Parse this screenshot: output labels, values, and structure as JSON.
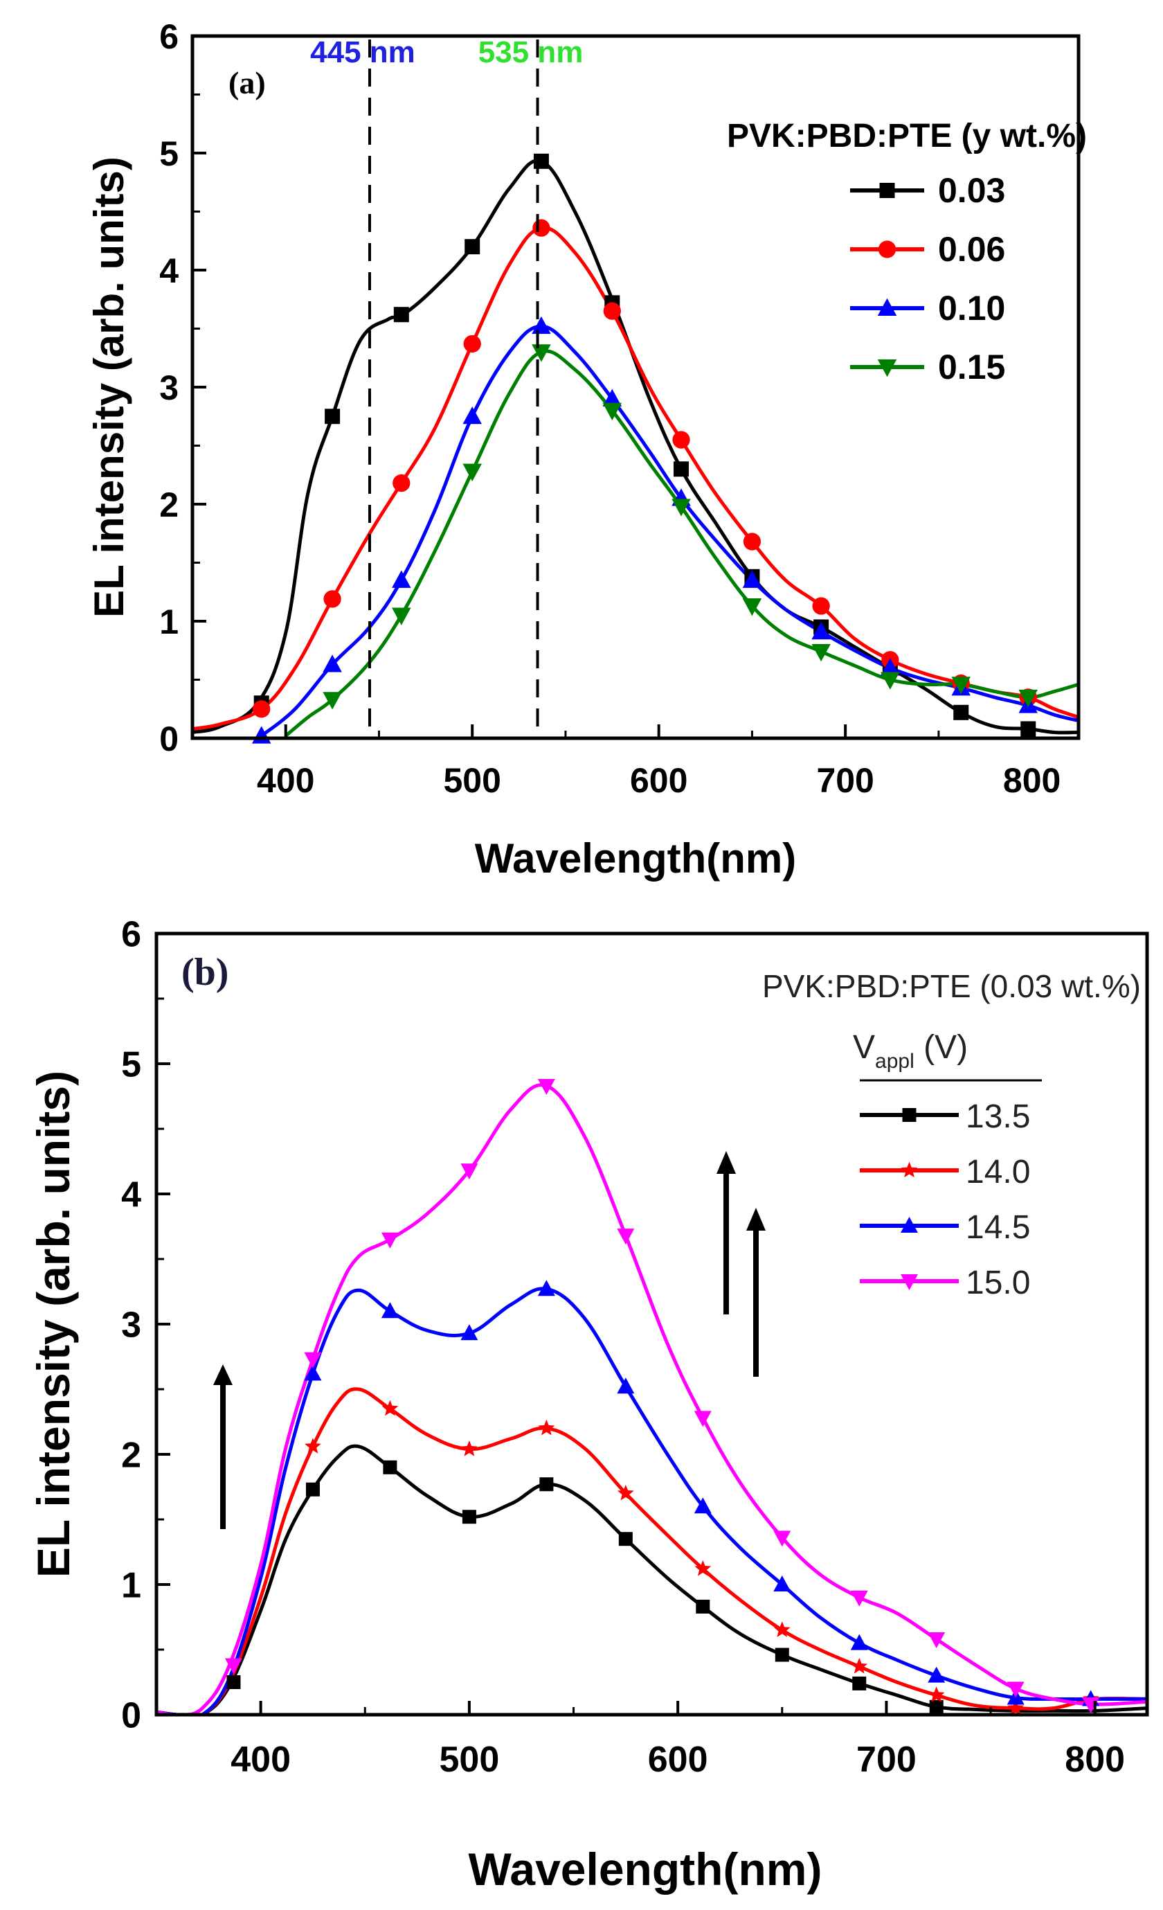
{
  "chart_data": [
    {
      "panel": "(a)",
      "type": "line",
      "xlabel": "Wavelength(nm)",
      "ylabel": "EL intensity (arb. units)",
      "xlim": [
        350,
        825
      ],
      "ylim": [
        0,
        6
      ],
      "x_ticks": [
        400,
        500,
        600,
        700,
        800
      ],
      "y_ticks": [
        0,
        1,
        2,
        3,
        4,
        5,
        6
      ],
      "legend_title": "PVK:PBD:PTE (y wt.%)",
      "legend_position": "top-right",
      "annotations": [
        {
          "text": "445 nm",
          "x": 445,
          "color": "#2020e0"
        },
        {
          "text": "535 nm",
          "x": 535,
          "color": "#30e030"
        }
      ],
      "series": [
        {
          "name": "0.03",
          "color": "#000000",
          "marker": "square",
          "x": [
            350,
            365,
            385,
            400,
            412,
            425,
            440,
            455,
            463,
            480,
            500,
            520,
            537,
            555,
            575,
            595,
            612,
            630,
            650,
            668,
            687,
            705,
            724,
            743,
            762,
            780,
            798,
            812,
            825
          ],
          "y": [
            0.05,
            0.1,
            0.3,
            0.9,
            2.1,
            2.75,
            3.4,
            3.58,
            3.62,
            3.85,
            4.2,
            4.7,
            4.93,
            4.5,
            3.75,
            2.9,
            2.3,
            1.85,
            1.38,
            1.1,
            0.95,
            0.78,
            0.6,
            0.42,
            0.22,
            0.1,
            0.08,
            0.05,
            0.05
          ],
          "markers_x": [
            387,
            425,
            462,
            500,
            537,
            575,
            612,
            650,
            687,
            724,
            762,
            798
          ],
          "markers_y": [
            0.3,
            2.75,
            3.62,
            4.2,
            4.93,
            3.72,
            2.3,
            1.38,
            0.95,
            0.6,
            0.22,
            0.08
          ]
        },
        {
          "name": "0.06",
          "color": "#ff0000",
          "marker": "circle",
          "x": [
            350,
            365,
            387,
            405,
            425,
            445,
            462,
            480,
            500,
            520,
            537,
            555,
            575,
            595,
            612,
            630,
            650,
            668,
            687,
            705,
            724,
            743,
            762,
            780,
            798,
            812,
            825
          ],
          "y": [
            0.08,
            0.12,
            0.25,
            0.6,
            1.19,
            1.75,
            2.18,
            2.65,
            3.37,
            4.05,
            4.36,
            4.15,
            3.65,
            3.0,
            2.55,
            2.1,
            1.68,
            1.35,
            1.13,
            0.85,
            0.67,
            0.55,
            0.47,
            0.4,
            0.35,
            0.25,
            0.18
          ],
          "markers_x": [
            387,
            425,
            462,
            500,
            537,
            575,
            612,
            650,
            687,
            724,
            762,
            798
          ],
          "markers_y": [
            0.25,
            1.19,
            2.18,
            3.37,
            4.36,
            3.65,
            2.55,
            1.68,
            1.13,
            0.67,
            0.47,
            0.35
          ]
        },
        {
          "name": "0.10",
          "color": "#0000ff",
          "marker": "triangle-up",
          "x": [
            387,
            405,
            425,
            445,
            462,
            480,
            500,
            520,
            537,
            555,
            575,
            595,
            612,
            630,
            650,
            668,
            687,
            705,
            724,
            743,
            762,
            780,
            798,
            812,
            825
          ],
          "y": [
            0.02,
            0.25,
            0.63,
            0.95,
            1.35,
            1.95,
            2.75,
            3.3,
            3.52,
            3.3,
            2.9,
            2.45,
            2.05,
            1.7,
            1.35,
            1.1,
            0.91,
            0.75,
            0.6,
            0.5,
            0.43,
            0.35,
            0.28,
            0.2,
            0.15
          ],
          "markers_x": [
            387,
            425,
            462,
            500,
            537,
            575,
            612,
            650,
            687,
            724,
            762,
            798
          ],
          "markers_y": [
            0.02,
            0.63,
            1.35,
            2.75,
            3.52,
            2.9,
            2.05,
            1.35,
            0.91,
            0.6,
            0.43,
            0.28
          ]
        },
        {
          "name": "0.15",
          "color": "#008000",
          "marker": "triangle-down",
          "x": [
            400,
            412,
            425,
            445,
            462,
            480,
            500,
            520,
            537,
            555,
            575,
            595,
            612,
            630,
            650,
            668,
            687,
            705,
            724,
            743,
            762,
            780,
            798,
            812,
            825
          ],
          "y": [
            0.02,
            0.18,
            0.33,
            0.65,
            1.05,
            1.6,
            2.28,
            2.95,
            3.3,
            3.15,
            2.8,
            2.35,
            1.98,
            1.55,
            1.13,
            0.88,
            0.74,
            0.62,
            0.5,
            0.46,
            0.46,
            0.4,
            0.35,
            0.4,
            0.46
          ],
          "markers_x": [
            425,
            462,
            500,
            537,
            575,
            612,
            650,
            687,
            724,
            762,
            798
          ],
          "markers_y": [
            0.33,
            1.05,
            2.28,
            3.3,
            2.8,
            1.98,
            1.13,
            0.74,
            0.5,
            0.46,
            0.35
          ]
        }
      ]
    },
    {
      "panel": "(b)",
      "type": "line",
      "xlabel": "Wavelength(nm)",
      "ylabel": "EL intensity (arb. units)",
      "xlim": [
        350,
        825
      ],
      "ylim": [
        0,
        6
      ],
      "x_ticks": [
        400,
        500,
        600,
        700,
        800
      ],
      "y_ticks": [
        0,
        1,
        2,
        3,
        4,
        5,
        6
      ],
      "legend_title": "PVK:PBD:PTE (0.03 wt.%)",
      "legend_header_main": "V",
      "legend_header_sub": "appl",
      "legend_header_unit": " (V)",
      "legend_position": "top-right",
      "series": [
        {
          "name": "13.5",
          "color": "#000000",
          "marker": "square",
          "x": [
            350,
            360,
            372,
            385,
            400,
            412,
            425,
            437,
            447,
            462,
            480,
            500,
            520,
            537,
            555,
            575,
            595,
            612,
            630,
            650,
            668,
            687,
            705,
            724,
            743,
            762,
            780,
            800,
            825
          ],
          "y": [
            0.02,
            0.0,
            0.0,
            0.22,
            0.8,
            1.35,
            1.73,
            1.98,
            2.06,
            1.9,
            1.68,
            1.52,
            1.62,
            1.77,
            1.65,
            1.35,
            1.05,
            0.83,
            0.62,
            0.46,
            0.35,
            0.24,
            0.15,
            0.06,
            0.04,
            0.03,
            0.03,
            0.03,
            0.05
          ],
          "markers_x": [
            387,
            425,
            462,
            500,
            537,
            575,
            612,
            650,
            687,
            724
          ],
          "markers_y": [
            0.25,
            1.73,
            1.9,
            1.52,
            1.77,
            1.35,
            0.83,
            0.46,
            0.24,
            0.06
          ]
        },
        {
          "name": "14.0",
          "color": "#ff0000",
          "marker": "star",
          "x": [
            350,
            360,
            372,
            385,
            400,
            412,
            425,
            437,
            447,
            462,
            480,
            500,
            520,
            537,
            555,
            575,
            595,
            612,
            630,
            650,
            668,
            687,
            705,
            724,
            743,
            762,
            780,
            800,
            825
          ],
          "y": [
            0.02,
            0.0,
            0.0,
            0.25,
            0.9,
            1.55,
            2.06,
            2.4,
            2.5,
            2.35,
            2.15,
            2.04,
            2.12,
            2.2,
            2.05,
            1.7,
            1.38,
            1.12,
            0.88,
            0.65,
            0.5,
            0.37,
            0.25,
            0.15,
            0.07,
            0.05,
            0.05,
            0.12,
            0.12
          ],
          "markers_x": [
            425,
            462,
            500,
            537,
            575,
            612,
            650,
            687,
            724,
            762,
            798
          ],
          "markers_y": [
            2.06,
            2.35,
            2.04,
            2.2,
            1.7,
            1.12,
            0.65,
            0.37,
            0.15,
            0.05,
            0.12
          ]
        },
        {
          "name": "14.5",
          "color": "#0000ff",
          "marker": "triangle-up",
          "x": [
            350,
            360,
            372,
            385,
            400,
            412,
            425,
            437,
            447,
            462,
            480,
            500,
            520,
            537,
            555,
            575,
            595,
            612,
            630,
            650,
            668,
            687,
            705,
            724,
            743,
            762,
            780,
            800,
            825
          ],
          "y": [
            0.02,
            0.0,
            0.0,
            0.28,
            1.05,
            1.9,
            2.62,
            3.1,
            3.26,
            3.1,
            2.95,
            2.93,
            3.15,
            3.27,
            3.05,
            2.52,
            2.0,
            1.6,
            1.28,
            1.0,
            0.75,
            0.55,
            0.42,
            0.3,
            0.2,
            0.13,
            0.12,
            0.12,
            0.12
          ],
          "markers_x": [
            425,
            462,
            500,
            537,
            575,
            612,
            650,
            687,
            724,
            762,
            798
          ],
          "markers_y": [
            2.62,
            3.1,
            2.93,
            3.27,
            2.52,
            1.6,
            1.0,
            0.55,
            0.3,
            0.13,
            0.12
          ]
        },
        {
          "name": "15.0",
          "color": "#ff00ff",
          "marker": "triangle-down",
          "x": [
            350,
            360,
            372,
            385,
            400,
            412,
            425,
            437,
            447,
            462,
            480,
            500,
            520,
            537,
            555,
            575,
            595,
            612,
            630,
            650,
            668,
            687,
            705,
            724,
            743,
            762,
            780,
            800,
            825
          ],
          "y": [
            0.02,
            0.0,
            0.05,
            0.38,
            1.15,
            2.05,
            2.73,
            3.25,
            3.52,
            3.65,
            3.85,
            4.18,
            4.65,
            4.83,
            4.45,
            3.68,
            2.85,
            2.28,
            1.78,
            1.36,
            1.08,
            0.9,
            0.78,
            0.58,
            0.38,
            0.2,
            0.12,
            0.08,
            0.1
          ],
          "markers_x": [
            387,
            425,
            462,
            500,
            537,
            575,
            612,
            650,
            687,
            724,
            762,
            798
          ],
          "markers_y": [
            0.38,
            2.73,
            3.65,
            4.18,
            4.83,
            3.68,
            2.28,
            1.36,
            0.9,
            0.58,
            0.2,
            0.08
          ]
        }
      ]
    }
  ]
}
